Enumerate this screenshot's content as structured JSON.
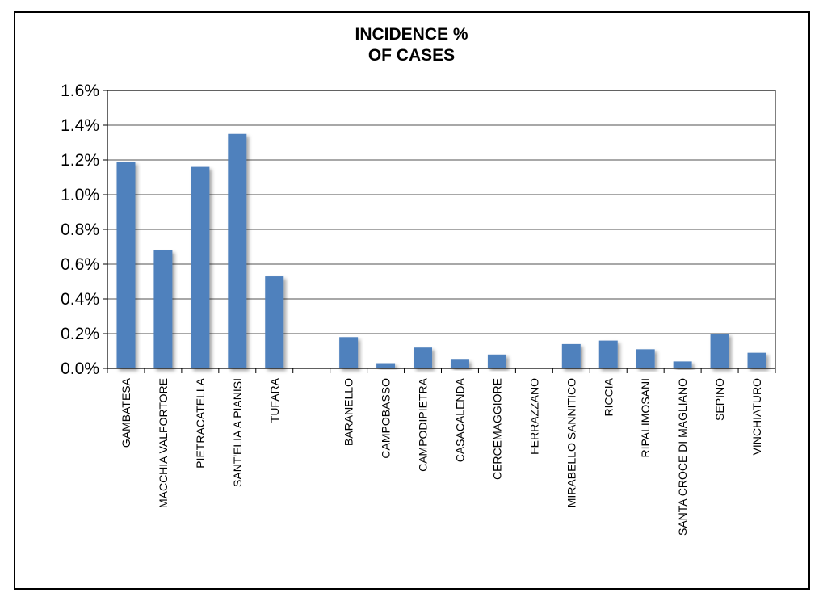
{
  "chart_data": {
    "type": "bar",
    "title_lines": [
      "INCIDENCE %",
      "OF CASES"
    ],
    "categories": [
      "GAMBATESA",
      "MACCHIA VALFORTORE",
      "PIETRACATELLA",
      "SANT'ELIA A PIANISI",
      "TUFARA",
      "",
      "BARANELLO",
      "CAMPOBASSO",
      "CAMPODIPIETRA",
      "CASACALENDA",
      "CERCEMAGGIORE",
      "FERRAZZANO",
      "MIRABELLO SANNITICO",
      "RICCIA",
      "RIPALIMOSANI",
      "SANTA CROCE DI MAGLIANO",
      "SEPINO",
      "VINCHIATURO"
    ],
    "values": [
      1.19,
      0.68,
      1.16,
      1.35,
      0.53,
      null,
      0.18,
      0.03,
      0.12,
      0.05,
      0.08,
      0.0,
      0.14,
      0.16,
      0.11,
      0.04,
      0.2,
      0.09
    ],
    "ylim": [
      0,
      1.6
    ],
    "yticks": [
      0,
      0.2,
      0.4,
      0.6,
      0.8,
      1.0,
      1.2,
      1.4,
      1.6
    ],
    "ytick_labels": [
      "0.0%",
      "0.2%",
      "0.4%",
      "0.6%",
      "0.8%",
      "1.0%",
      "1.2%",
      "1.4%",
      "1.6%"
    ],
    "xlabel": "",
    "ylabel": "",
    "grid": true,
    "legend": "none",
    "bar_color": "#4F81BD"
  }
}
